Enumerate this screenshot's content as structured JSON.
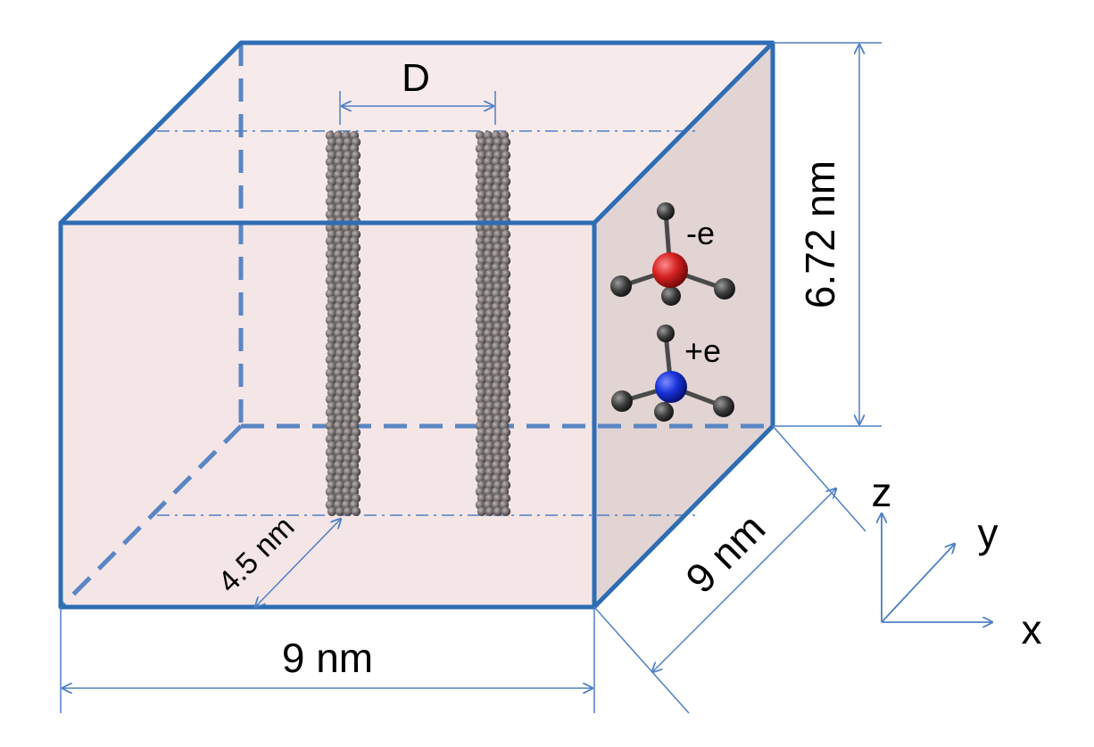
{
  "labels": {
    "spacing": "D",
    "height": "6.72 nm",
    "width": "9 nm",
    "depth": "9 nm",
    "offset": "4.5 nm",
    "anion_charge": "-e",
    "cation_charge": "+e",
    "axis_x": "x",
    "axis_y": "y",
    "axis_z": "z"
  },
  "colors": {
    "box_edge": "#2e6db4",
    "box_fill": "#f4e6e6",
    "side_fill": "#e3d4d4",
    "dimension_line": "#4f7fc4",
    "nanotube": "#6f6868",
    "anion_center": "#d42020",
    "cation_center": "#1832d8",
    "ligand_atom": "#3d3d3d"
  },
  "icons": {
    "nanotube": "carbon-nanotube-icon",
    "anion": "anion-molecule-icon",
    "cation": "cation-molecule-icon"
  }
}
